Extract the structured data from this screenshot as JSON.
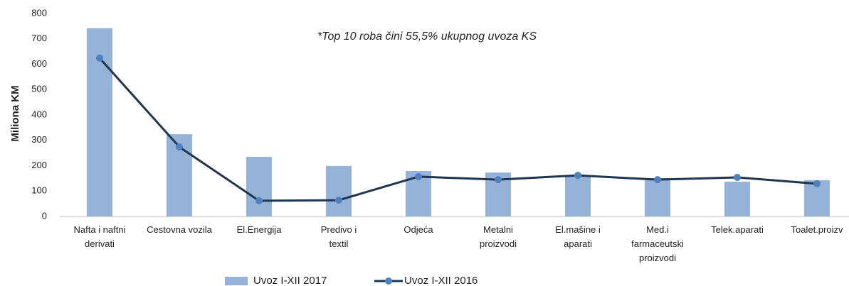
{
  "chart_data": {
    "type": "bar-line",
    "annotation": "*Top 10 roba čini 55,5% ukupnog uvoza KS",
    "y_label": "Miliona KM",
    "categories": [
      "Nafta i naftni derivati",
      "Cestovna vozila",
      "El.Energija",
      "Predivo i textil",
      "Odjeća",
      "Metalni proizvodi",
      "El.mašine i aparati",
      "Med.i farmaceutski proizvodi",
      "Telek.aparati",
      "Toalet.proizv"
    ],
    "series": [
      {
        "name": "Uvoz I-XII 2017",
        "type": "bar",
        "color": "#95b3d7",
        "values": [
          742,
          324,
          235,
          199,
          179,
          173,
          163,
          151,
          137,
          143
        ]
      },
      {
        "name": "Uvoz I-XII 2016",
        "type": "line",
        "color": "#1f3550",
        "values": [
          624,
          274,
          62,
          64,
          157,
          145,
          162,
          145,
          154,
          129
        ]
      }
    ],
    "ylim": [
      0,
      800
    ],
    "yticks": [
      0,
      100,
      200,
      300,
      400,
      500,
      600,
      700,
      800
    ],
    "grid": false
  }
}
